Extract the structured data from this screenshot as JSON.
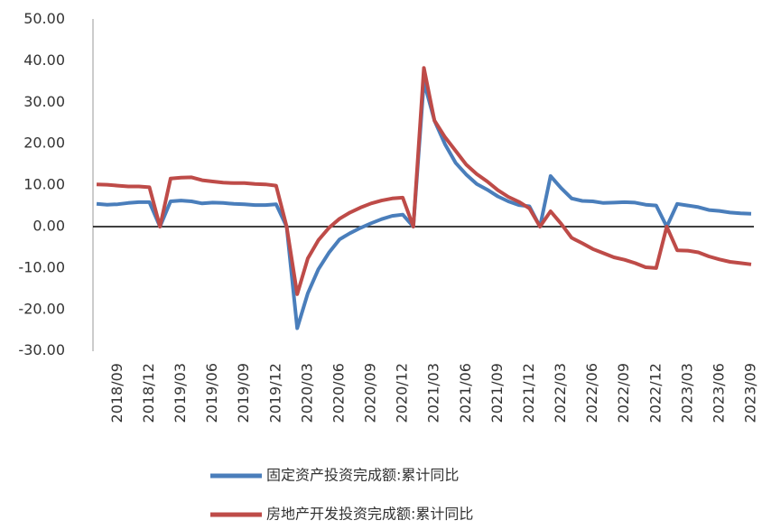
{
  "chart_data": {
    "type": "line",
    "categories": [
      null,
      null,
      "2018/09",
      null,
      null,
      "2018/12",
      null,
      null,
      "2019/03",
      null,
      null,
      "2019/06",
      null,
      null,
      "2019/09",
      null,
      null,
      "2019/12",
      null,
      null,
      "2020/03",
      null,
      null,
      "2020/06",
      null,
      null,
      "2020/09",
      null,
      null,
      "2020/12",
      null,
      null,
      "2021/03",
      null,
      null,
      "2021/06",
      null,
      null,
      "2021/09",
      null,
      null,
      "2021/12",
      null,
      null,
      "2022/03",
      null,
      null,
      "2022/06",
      null,
      null,
      "2022/09",
      null,
      null,
      "2022/12",
      null,
      null,
      "2023/03",
      null,
      null,
      "2023/06",
      null,
      null,
      "2023/09"
    ],
    "series": [
      {
        "name": "固定资产投资完成额:累计同比",
        "color": "#4a7ebb",
        "values": [
          5.5,
          5.3,
          5.4,
          5.7,
          5.9,
          5.9,
          0,
          6.1,
          6.3,
          6.1,
          5.6,
          5.8,
          5.7,
          5.5,
          5.4,
          5.2,
          5.2,
          5.4,
          0,
          -24.5,
          -16.1,
          -10.3,
          -6.3,
          -3.1,
          -1.6,
          -0.3,
          0.8,
          1.8,
          2.6,
          2.9,
          0,
          35.0,
          25.6,
          19.9,
          15.4,
          12.6,
          10.3,
          8.9,
          7.3,
          6.1,
          5.2,
          4.9,
          0,
          12.2,
          9.3,
          6.8,
          6.2,
          6.1,
          5.7,
          5.8,
          5.9,
          5.8,
          5.3,
          5.1,
          0,
          5.5,
          5.1,
          4.7,
          4.0,
          3.8,
          3.4,
          3.2,
          3.1
        ]
      },
      {
        "name": "房地产开发投资完成额:累计同比",
        "color": "#be4b48",
        "values": [
          10.2,
          10.1,
          9.9,
          9.7,
          9.7,
          9.5,
          0,
          11.6,
          11.8,
          11.9,
          11.2,
          10.9,
          10.6,
          10.5,
          10.5,
          10.3,
          10.2,
          9.9,
          0,
          -16.3,
          -7.7,
          -3.3,
          -0.3,
          1.9,
          3.4,
          4.6,
          5.6,
          6.3,
          6.8,
          7.0,
          0,
          38.3,
          25.6,
          21.6,
          18.3,
          15.0,
          12.7,
          10.9,
          8.8,
          7.2,
          6.0,
          4.4,
          0,
          3.7,
          0.7,
          -2.7,
          -4.0,
          -5.4,
          -6.4,
          -7.4,
          -8.0,
          -8.8,
          -9.8,
          -10.0,
          0,
          -5.7,
          -5.8,
          -6.2,
          -7.2,
          -7.9,
          -8.5,
          -8.8,
          -9.1
        ]
      }
    ],
    "ylim": [
      -30,
      50
    ],
    "yticks": [
      {
        "value": -30,
        "label": "-30.00"
      },
      {
        "value": -20,
        "label": "-20.00"
      },
      {
        "value": -10,
        "label": "-10.00"
      },
      {
        "value": 0,
        "label": "0.00"
      },
      {
        "value": 10,
        "label": "10.00"
      },
      {
        "value": 20,
        "label": "20.00"
      },
      {
        "value": 30,
        "label": "30.00"
      },
      {
        "value": 40,
        "label": "40.00"
      },
      {
        "value": 50,
        "label": "50.00"
      }
    ],
    "grid": false
  }
}
